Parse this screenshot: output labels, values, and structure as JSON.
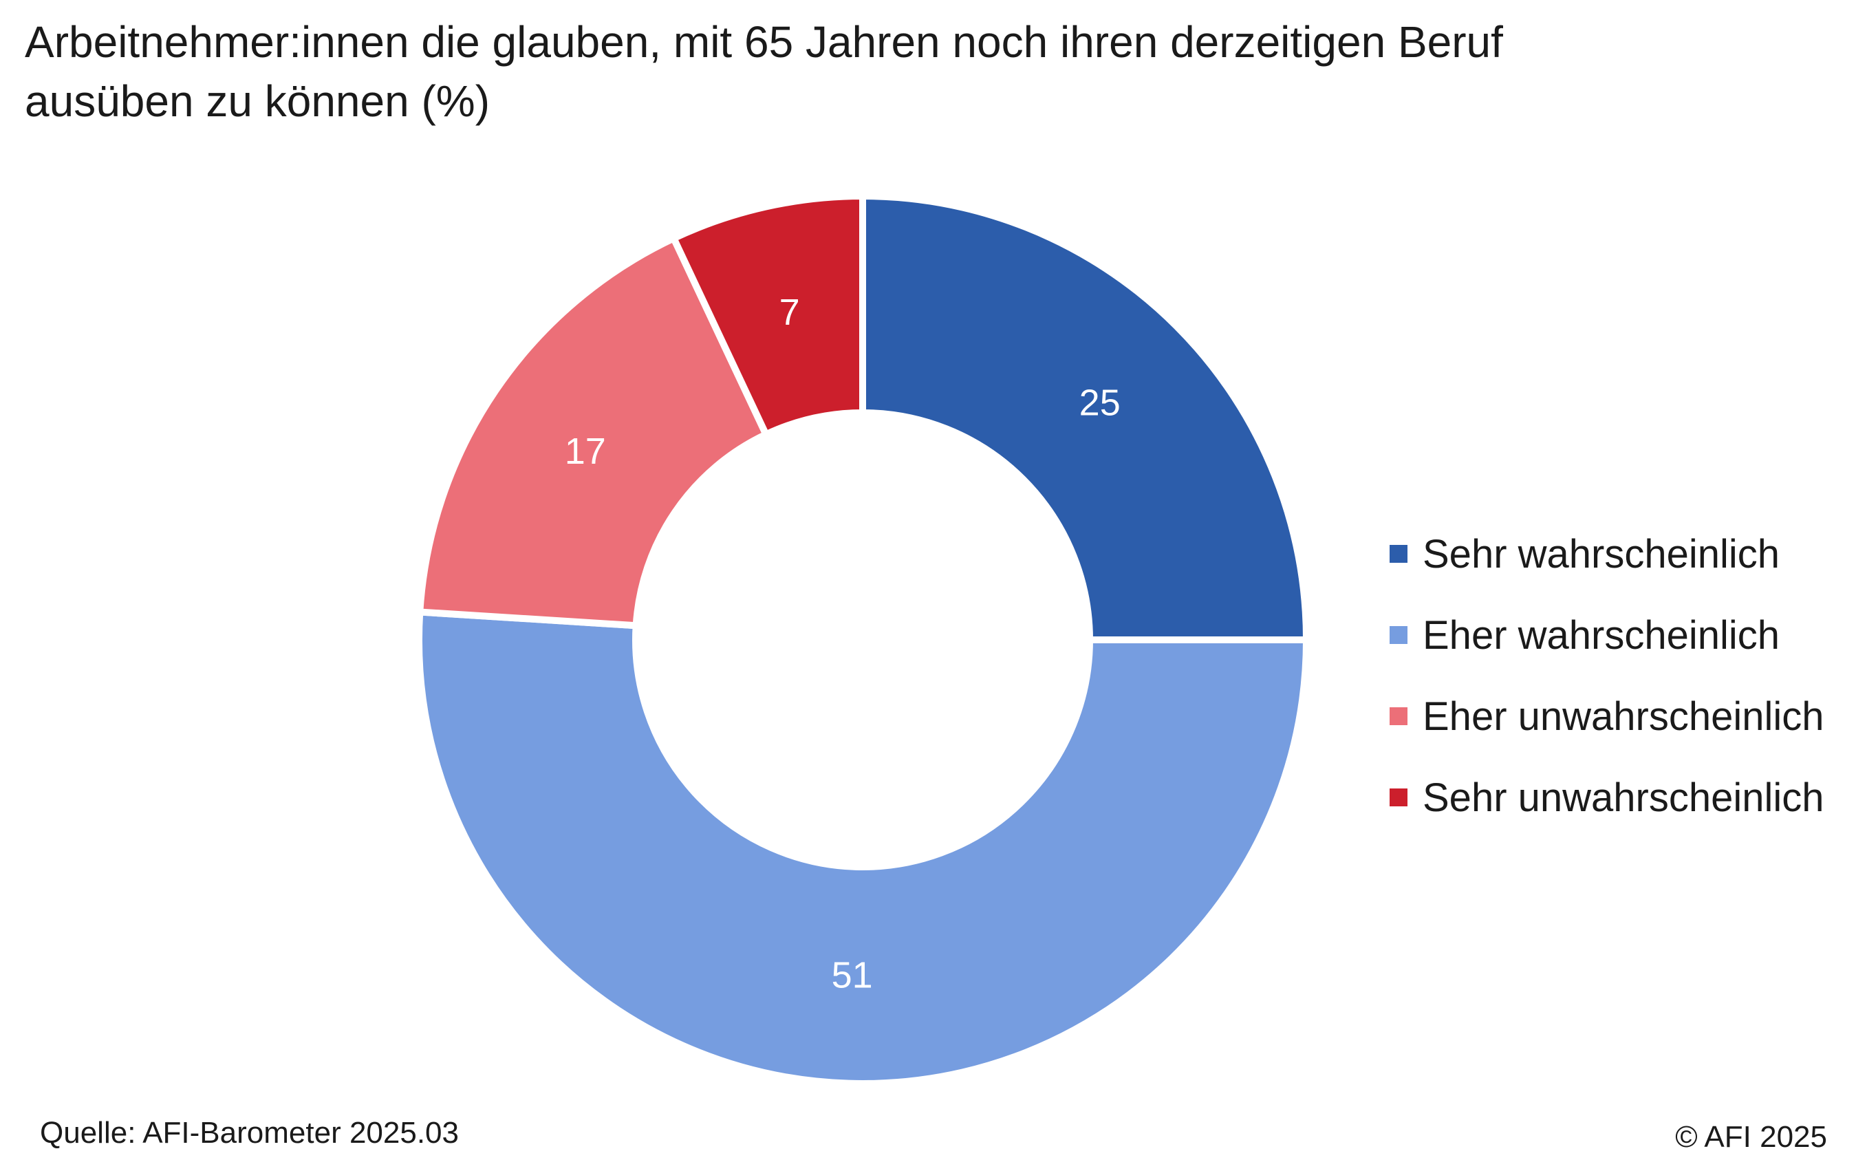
{
  "chart_data": {
    "type": "pie",
    "title": "Arbeitnehmer:innen die glauben, mit 65 Jahren noch ihren derzeitigen Beruf ausüben zu können (%)",
    "categories": [
      "Sehr wahrscheinlich",
      "Eher wahrscheinlich",
      "Eher unwahrscheinlich",
      "Sehr unwahrscheinlich"
    ],
    "values": [
      25,
      51,
      17,
      7
    ],
    "colors": [
      "#2c5dab",
      "#769de0",
      "#ec6f78",
      "#cc1f2c"
    ],
    "donut": true,
    "legend_position": "right",
    "data_labels": true,
    "start": "top, clockwise"
  },
  "source": "Quelle: AFI-Barometer 2025.03",
  "copyright": "© AFI 2025"
}
